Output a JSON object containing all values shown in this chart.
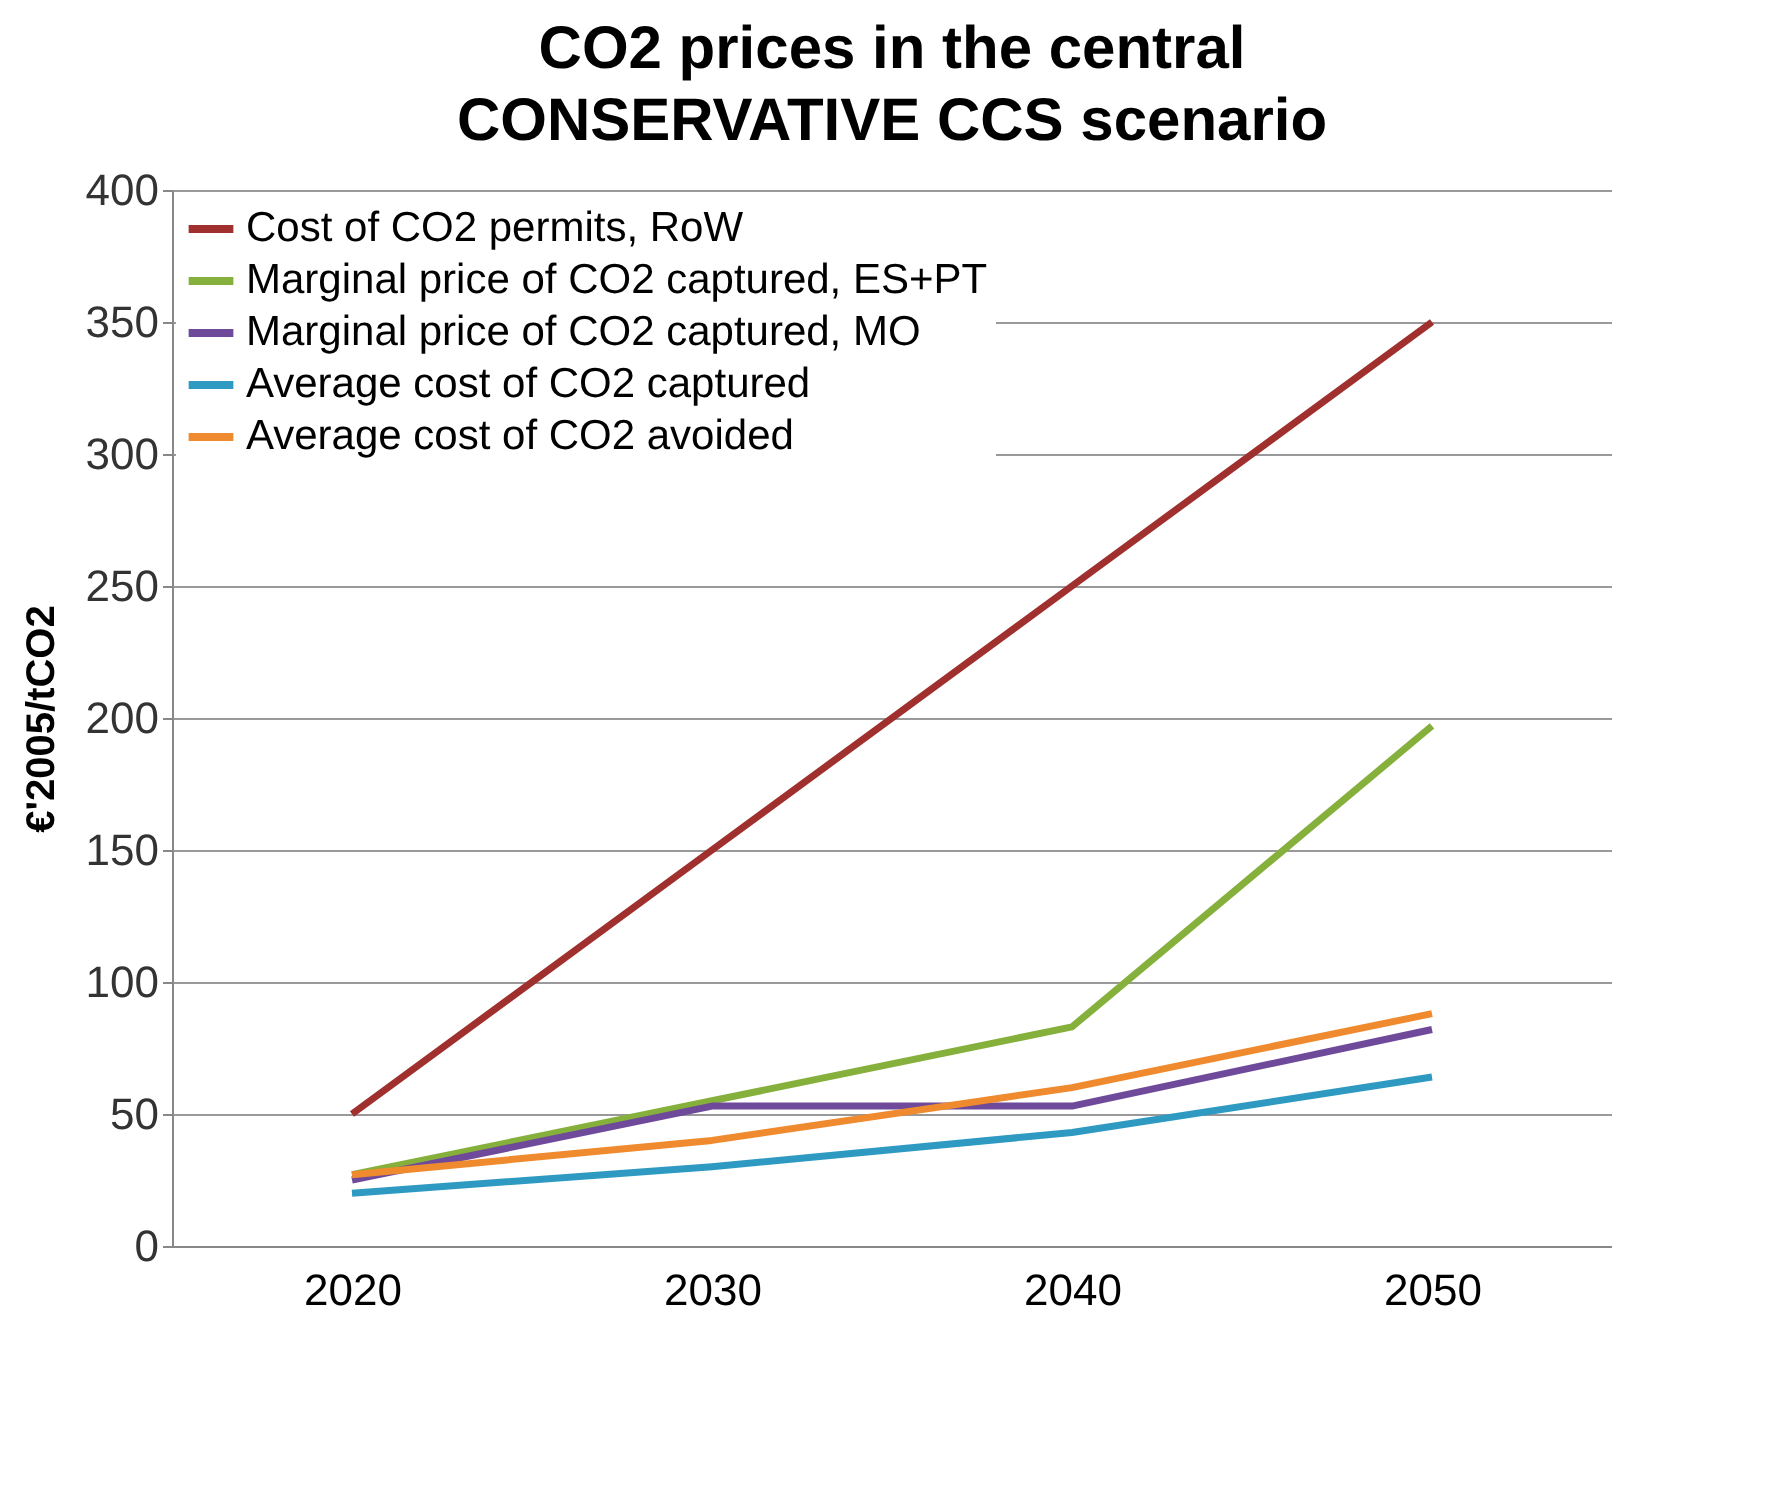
{
  "chart_data": {
    "type": "line",
    "title": "CO2 prices in the central CONSERVATIVE CCS scenario",
    "ylabel": "€'2005/tCO2",
    "categories": [
      "2020",
      "2030",
      "2040",
      "2050"
    ],
    "series": [
      {
        "name": "Cost of CO2 permits, RoW",
        "color": "#a0302d",
        "values": [
          50,
          150,
          250,
          350
        ]
      },
      {
        "name": "Marginal price of CO2 captured, ES+PT",
        "color": "#86b03c",
        "values": [
          27,
          55,
          83,
          197
        ]
      },
      {
        "name": "Marginal price of CO2 captured, MO",
        "color": "#6f4a9a",
        "values": [
          25,
          53,
          53,
          82
        ]
      },
      {
        "name": "Average cost of CO2 captured",
        "color": "#2e9ac2",
        "values": [
          20,
          30,
          43,
          64
        ]
      },
      {
        "name": "Average cost of CO2 avoided",
        "color": "#ef8a2e",
        "values": [
          27,
          40,
          60,
          88
        ]
      }
    ],
    "ylim": [
      0,
      400
    ],
    "yticks": [
      0,
      50,
      100,
      150,
      200,
      250,
      300,
      350,
      400
    ],
    "grid": "y",
    "legend": "top left",
    "marker": "none",
    "line_style": "solid"
  }
}
